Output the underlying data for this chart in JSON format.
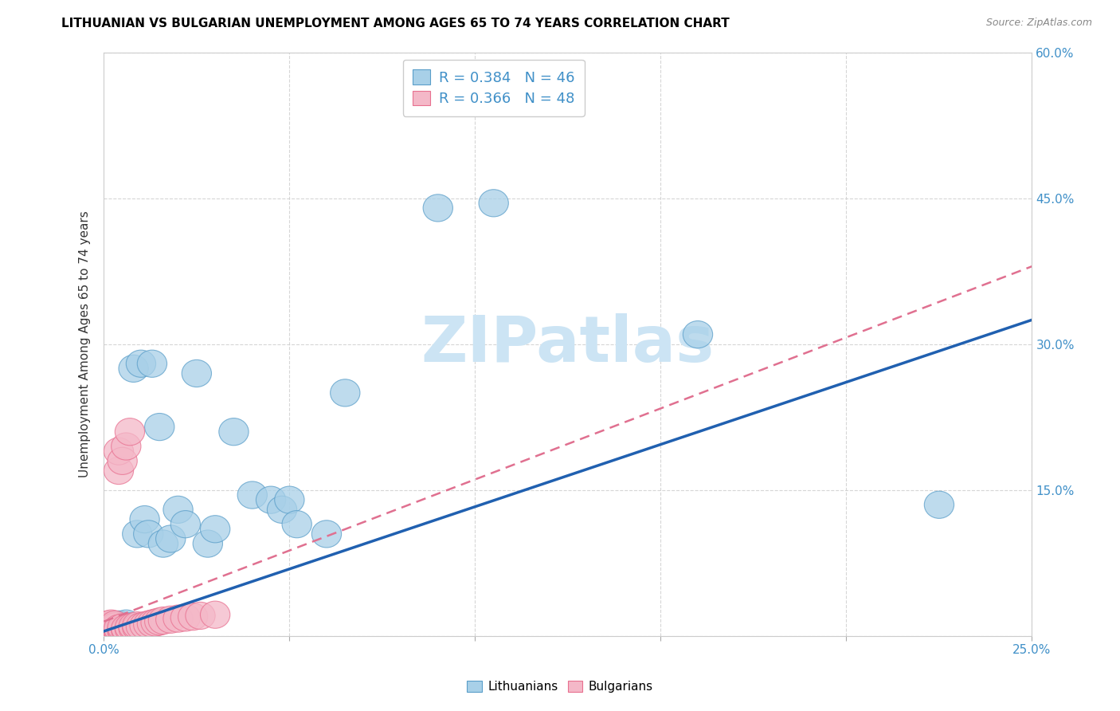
{
  "title": "LITHUANIAN VS BULGARIAN UNEMPLOYMENT AMONG AGES 65 TO 74 YEARS CORRELATION CHART",
  "source": "Source: ZipAtlas.com",
  "ylabel": "Unemployment Among Ages 65 to 74 years",
  "xlim": [
    0.0,
    0.25
  ],
  "ylim": [
    0.0,
    0.6
  ],
  "color_blue": "#a8d0e8",
  "color_pink": "#f4b8c8",
  "color_blue_edge": "#5a9ec9",
  "color_pink_edge": "#e87090",
  "color_line_blue": "#2060b0",
  "color_line_pink": "#e07090",
  "color_blue_text": "#4090c8",
  "watermark": "ZIPatlas",
  "watermark_color": "#cce4f4",
  "lit_x": [
    0.001,
    0.001,
    0.002,
    0.002,
    0.002,
    0.003,
    0.003,
    0.003,
    0.004,
    0.004,
    0.004,
    0.005,
    0.005,
    0.005,
    0.006,
    0.006,
    0.006,
    0.007,
    0.007,
    0.008,
    0.008,
    0.009,
    0.01,
    0.011,
    0.012,
    0.013,
    0.015,
    0.016,
    0.018,
    0.02,
    0.022,
    0.025,
    0.028,
    0.03,
    0.035,
    0.04,
    0.045,
    0.048,
    0.05,
    0.052,
    0.06,
    0.065,
    0.09,
    0.105,
    0.16,
    0.225
  ],
  "lit_y": [
    0.005,
    0.008,
    0.004,
    0.007,
    0.01,
    0.005,
    0.008,
    0.011,
    0.006,
    0.009,
    0.012,
    0.005,
    0.008,
    0.011,
    0.006,
    0.009,
    0.013,
    0.007,
    0.01,
    0.008,
    0.275,
    0.105,
    0.28,
    0.12,
    0.105,
    0.28,
    0.215,
    0.095,
    0.1,
    0.13,
    0.115,
    0.27,
    0.095,
    0.11,
    0.21,
    0.145,
    0.14,
    0.13,
    0.14,
    0.115,
    0.105,
    0.25,
    0.44,
    0.445,
    0.31,
    0.135
  ],
  "bul_x": [
    0.001,
    0.001,
    0.001,
    0.001,
    0.001,
    0.002,
    0.002,
    0.002,
    0.002,
    0.002,
    0.002,
    0.003,
    0.003,
    0.003,
    0.003,
    0.003,
    0.004,
    0.004,
    0.004,
    0.004,
    0.004,
    0.005,
    0.005,
    0.005,
    0.005,
    0.006,
    0.006,
    0.006,
    0.007,
    0.007,
    0.007,
    0.008,
    0.008,
    0.009,
    0.009,
    0.01,
    0.011,
    0.012,
    0.013,
    0.014,
    0.015,
    0.016,
    0.018,
    0.02,
    0.022,
    0.024,
    0.026,
    0.03
  ],
  "bul_y": [
    0.004,
    0.006,
    0.008,
    0.01,
    0.012,
    0.003,
    0.005,
    0.007,
    0.009,
    0.011,
    0.013,
    0.004,
    0.006,
    0.008,
    0.01,
    0.012,
    0.004,
    0.006,
    0.008,
    0.17,
    0.19,
    0.005,
    0.007,
    0.009,
    0.18,
    0.006,
    0.008,
    0.195,
    0.007,
    0.009,
    0.21,
    0.008,
    0.01,
    0.009,
    0.011,
    0.01,
    0.011,
    0.012,
    0.013,
    0.014,
    0.015,
    0.016,
    0.017,
    0.018,
    0.019,
    0.02,
    0.021,
    0.022
  ]
}
